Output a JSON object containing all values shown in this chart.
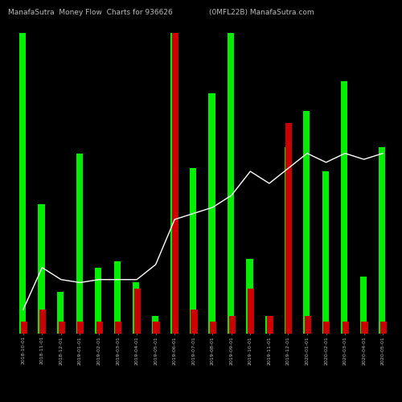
{
  "title_left": "ManafaSutra  Money Flow  Charts for 936626",
  "title_right": "(0MFL22B) ManafaSutra.com",
  "background_color": "#000000",
  "categories": [
    "2018-10-01",
    "2018-11-01",
    "2018-12-01",
    "2019-01-01",
    "2019-02-01",
    "2019-03-01",
    "2019-04-01",
    "2019-05-01",
    "2019-06-01",
    "2019-07-01",
    "2019-08-01",
    "2019-09-01",
    "2019-10-01",
    "2019-11-01",
    "2019-12-01",
    "2020-01-01",
    "2020-02-01",
    "2020-03-01",
    "2020-04-01",
    "2020-05-01"
  ],
  "green_bars": [
    1.0,
    0.43,
    0.14,
    0.6,
    0.22,
    0.24,
    0.17,
    0.06,
    1.0,
    0.55,
    0.8,
    1.0,
    0.25,
    0.06,
    0.62,
    0.74,
    0.54,
    0.84,
    0.19,
    0.62
  ],
  "red_bars": [
    0.04,
    0.08,
    0.04,
    0.04,
    0.04,
    0.04,
    0.15,
    0.04,
    1.0,
    0.08,
    0.04,
    0.06,
    0.15,
    0.06,
    0.7,
    0.06,
    0.04,
    0.04,
    0.04,
    0.04
  ],
  "line_values": [
    0.08,
    0.22,
    0.18,
    0.17,
    0.18,
    0.18,
    0.18,
    0.23,
    0.38,
    0.4,
    0.42,
    0.46,
    0.54,
    0.5,
    0.55,
    0.6,
    0.57,
    0.6,
    0.58,
    0.6
  ],
  "green_color": "#00ee00",
  "red_color": "#cc0000",
  "line_color": "#ffffff",
  "text_color": "#bbbbbb",
  "title_fontsize": 6.5,
  "tick_fontsize": 4.5,
  "bar_width": 0.35
}
